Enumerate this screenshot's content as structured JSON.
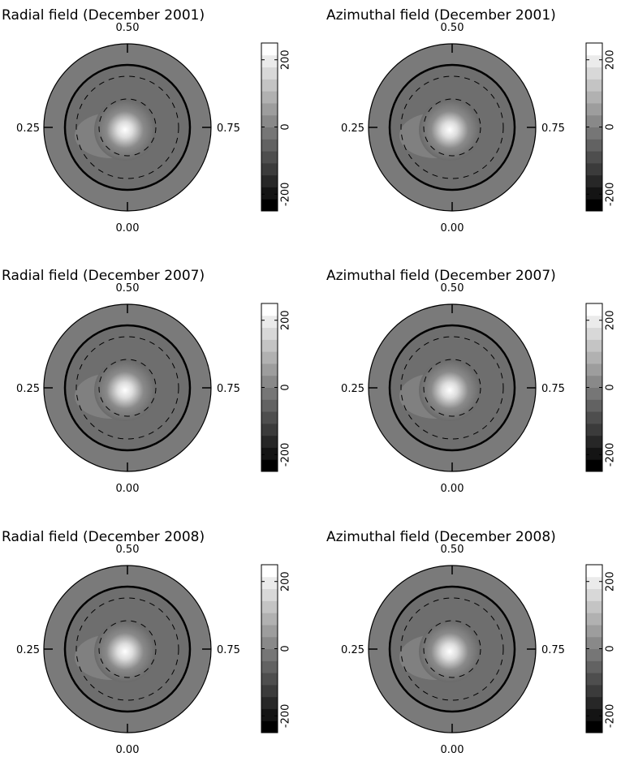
{
  "chart_data": [
    {
      "type": "polar-map",
      "title": "Radial field (December 2001)",
      "phases": [
        "0.50",
        "0.25",
        "0.75",
        "0.00"
      ],
      "clim": [
        -250,
        250
      ],
      "cticks": [
        -200,
        0,
        200
      ]
    },
    {
      "type": "polar-map",
      "title": "Azimuthal field (December 2001)",
      "phases": [
        "0.50",
        "0.25",
        "0.75",
        "0.00"
      ],
      "clim": [
        -250,
        250
      ],
      "cticks": [
        -200,
        0,
        200
      ]
    },
    {
      "type": "polar-map",
      "title": "Radial field (December 2007)",
      "phases": [
        "0.50",
        "0.25",
        "0.75",
        "0.00"
      ],
      "clim": [
        -250,
        250
      ],
      "cticks": [
        -200,
        0,
        200
      ]
    },
    {
      "type": "polar-map",
      "title": "Azimuthal field (December 2007)",
      "phases": [
        "0.50",
        "0.25",
        "0.75",
        "0.00"
      ],
      "clim": [
        -250,
        250
      ],
      "cticks": [
        -200,
        0,
        200
      ]
    },
    {
      "type": "polar-map",
      "title": "Radial field (December 2008)",
      "phases": [
        "0.50",
        "0.25",
        "0.75",
        "0.00"
      ],
      "clim": [
        -250,
        250
      ],
      "cticks": [
        -200,
        0,
        200
      ]
    },
    {
      "type": "polar-map",
      "title": "Azimuthal field (December 2008)",
      "phases": [
        "0.50",
        "0.25",
        "0.75",
        "0.00"
      ],
      "clim": [
        -250,
        250
      ],
      "cticks": [
        -200,
        0,
        200
      ]
    }
  ]
}
